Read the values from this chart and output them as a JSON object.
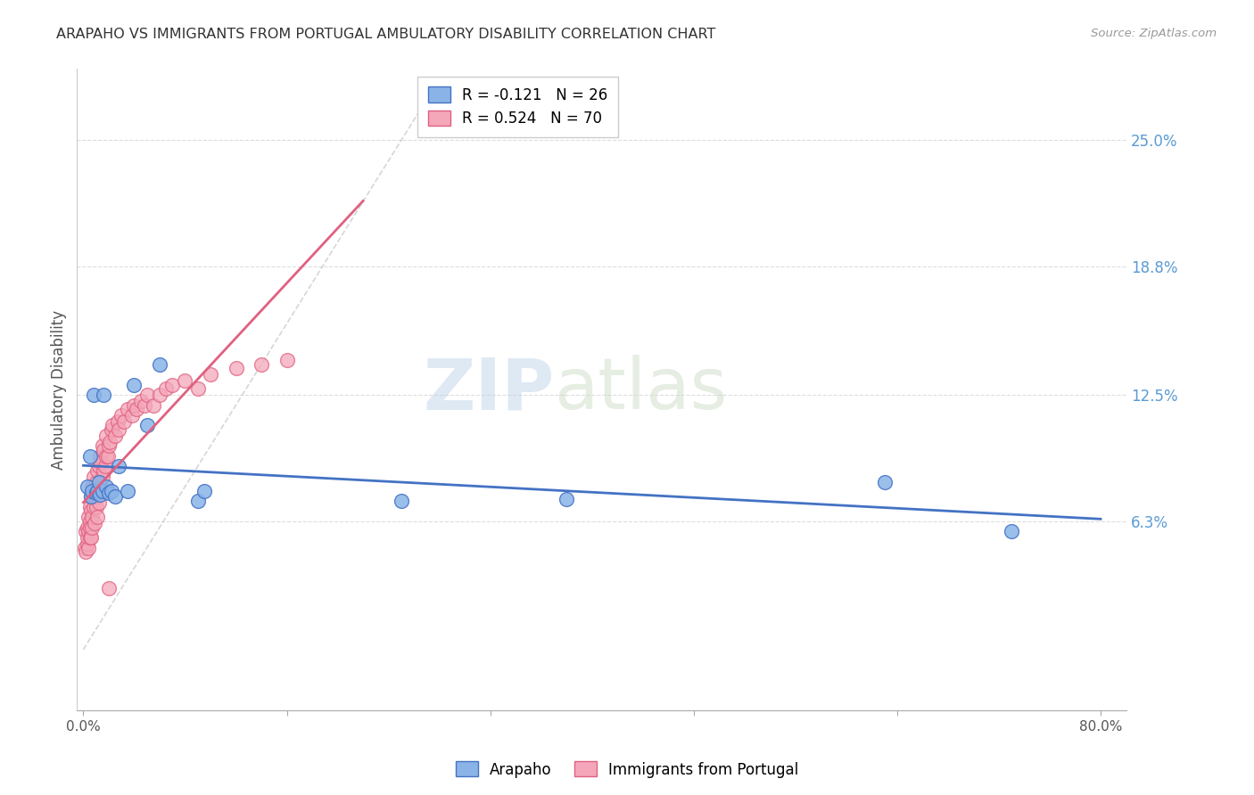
{
  "title": "ARAPAHO VS IMMIGRANTS FROM PORTUGAL AMBULATORY DISABILITY CORRELATION CHART",
  "source": "Source: ZipAtlas.com",
  "ylabel": "Ambulatory Disability",
  "ytick_labels": [
    "6.3%",
    "12.5%",
    "18.8%",
    "25.0%"
  ],
  "ytick_values": [
    0.063,
    0.125,
    0.188,
    0.25
  ],
  "xlim": [
    -0.005,
    0.82
  ],
  "ylim": [
    -0.03,
    0.285
  ],
  "legend_label1": "R = -0.121   N = 26",
  "legend_label2": "R = 0.524   N = 70",
  "color_blue": "#8ab4e8",
  "color_pink": "#f4a7b9",
  "color_line_blue": "#4472c4",
  "color_line_pink": "#e06080",
  "color_diagonal": "#cccccc",
  "watermark_zip": "ZIP",
  "watermark_atlas": "atlas",
  "background_color": "#ffffff",
  "arapaho_x": [
    0.003,
    0.005,
    0.006,
    0.007,
    0.008,
    0.01,
    0.011,
    0.012,
    0.013,
    0.015,
    0.016,
    0.018,
    0.02,
    0.022,
    0.025,
    0.028,
    0.035,
    0.04,
    0.05,
    0.06,
    0.09,
    0.095,
    0.25,
    0.38,
    0.63,
    0.73
  ],
  "arapaho_y": [
    0.08,
    0.095,
    0.075,
    0.078,
    0.125,
    0.077,
    0.078,
    0.082,
    0.076,
    0.078,
    0.125,
    0.08,
    0.077,
    0.078,
    0.075,
    0.09,
    0.078,
    0.13,
    0.11,
    0.14,
    0.073,
    0.078,
    0.073,
    0.074,
    0.082,
    0.058
  ],
  "portugal_x": [
    0.001,
    0.002,
    0.002,
    0.003,
    0.003,
    0.003,
    0.004,
    0.004,
    0.004,
    0.005,
    0.005,
    0.005,
    0.005,
    0.006,
    0.006,
    0.006,
    0.007,
    0.007,
    0.007,
    0.008,
    0.008,
    0.008,
    0.009,
    0.009,
    0.01,
    0.01,
    0.01,
    0.011,
    0.011,
    0.012,
    0.012,
    0.013,
    0.013,
    0.014,
    0.014,
    0.015,
    0.015,
    0.016,
    0.016,
    0.017,
    0.018,
    0.018,
    0.019,
    0.02,
    0.021,
    0.022,
    0.023,
    0.025,
    0.027,
    0.028,
    0.03,
    0.032,
    0.035,
    0.038,
    0.04,
    0.042,
    0.045,
    0.048,
    0.05,
    0.055,
    0.06,
    0.065,
    0.07,
    0.08,
    0.09,
    0.1,
    0.12,
    0.14,
    0.16,
    0.02
  ],
  "portugal_y": [
    0.05,
    0.048,
    0.058,
    0.052,
    0.06,
    0.055,
    0.058,
    0.065,
    0.05,
    0.055,
    0.063,
    0.07,
    0.06,
    0.055,
    0.068,
    0.075,
    0.06,
    0.08,
    0.065,
    0.075,
    0.07,
    0.085,
    0.062,
    0.078,
    0.07,
    0.082,
    0.075,
    0.065,
    0.088,
    0.072,
    0.09,
    0.078,
    0.095,
    0.08,
    0.092,
    0.085,
    0.1,
    0.088,
    0.098,
    0.09,
    0.095,
    0.105,
    0.095,
    0.1,
    0.102,
    0.108,
    0.11,
    0.105,
    0.112,
    0.108,
    0.115,
    0.112,
    0.118,
    0.115,
    0.12,
    0.118,
    0.122,
    0.12,
    0.125,
    0.12,
    0.125,
    0.128,
    0.13,
    0.132,
    0.128,
    0.135,
    0.138,
    0.14,
    0.142,
    0.03
  ]
}
